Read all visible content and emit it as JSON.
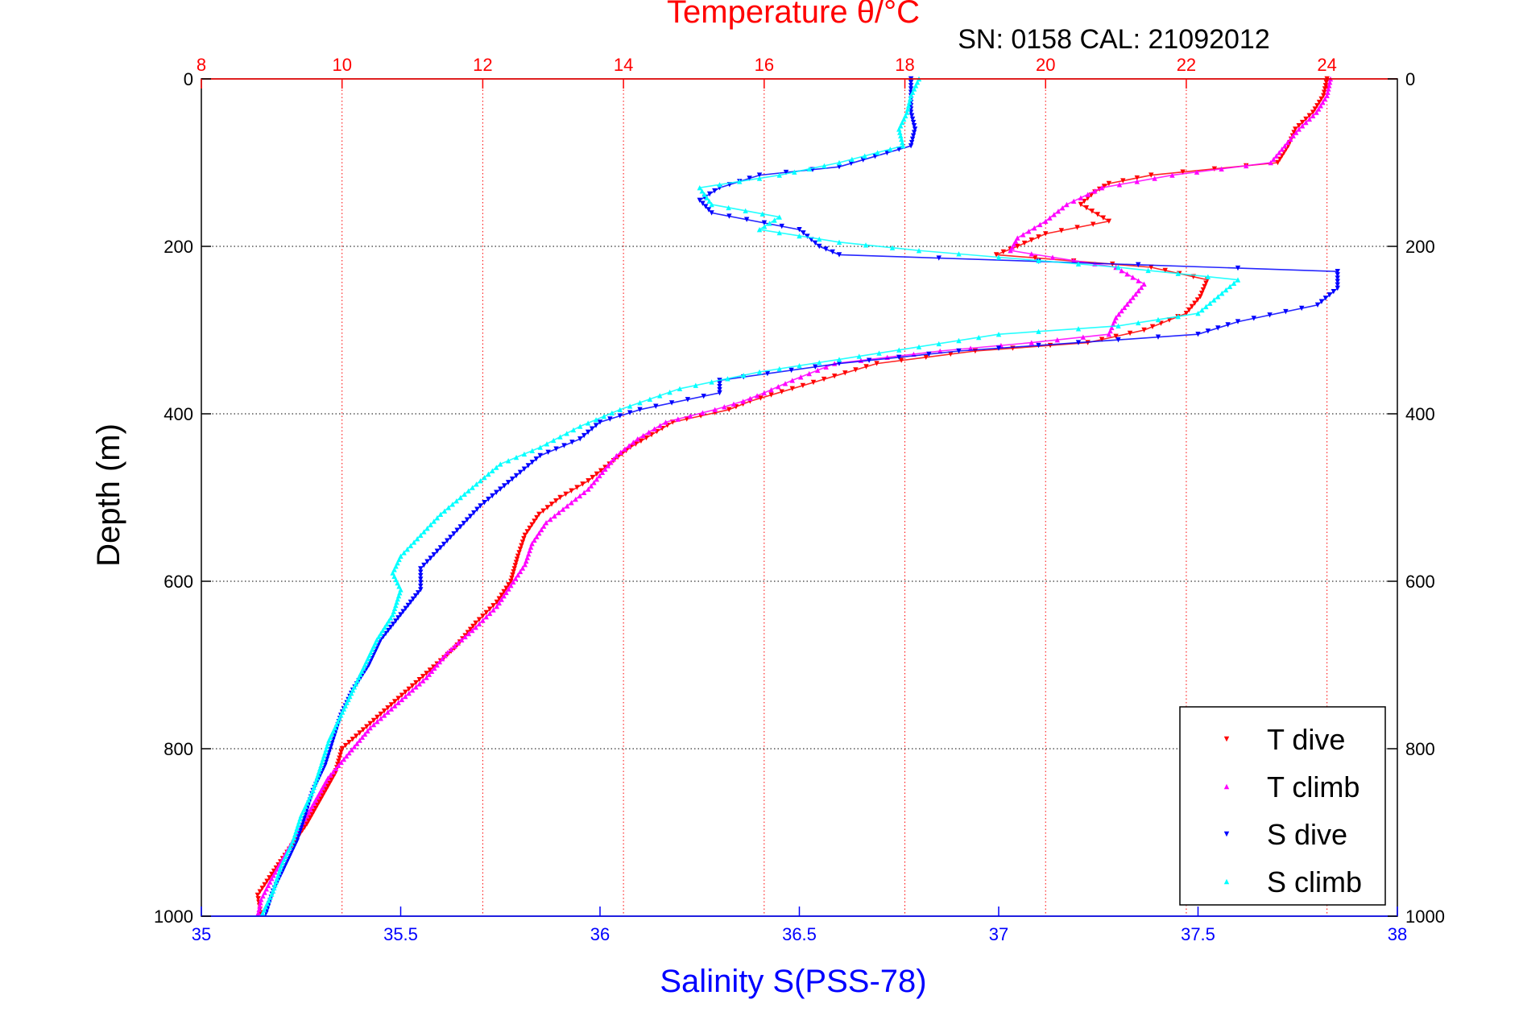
{
  "chart_data": {
    "type": "scatter",
    "title": "Temperature θ/°C",
    "subtitle": "SN: 0158  CAL: 21092012",
    "xlabel": "Salinity S(PSS-78)",
    "ylabel": "Depth (m)",
    "ylim": [
      1000,
      0
    ],
    "y_ticks": [
      0,
      200,
      400,
      600,
      800,
      1000
    ],
    "y_tick_labels": [
      "0",
      "200",
      "400",
      "600",
      "800",
      "1000"
    ],
    "x_bottom": {
      "label": "Salinity S(PSS-78)",
      "lim": [
        35,
        38
      ],
      "ticks": [
        35,
        35.5,
        36,
        36.5,
        37,
        37.5,
        38
      ],
      "tick_labels": [
        "35",
        "35.5",
        "36",
        "36.5",
        "37",
        "37.5",
        "38"
      ],
      "color": "#0000ff"
    },
    "x_top": {
      "label": "Temperature θ/°C",
      "lim": [
        8,
        25
      ],
      "ticks": [
        8,
        10,
        12,
        14,
        16,
        18,
        20,
        22,
        24
      ],
      "tick_labels": [
        "8",
        "10",
        "12",
        "14",
        "16",
        "18",
        "20",
        "22",
        "24"
      ],
      "color": "#ff0000"
    },
    "grid": true,
    "legend_position": "bottom-right",
    "series": [
      {
        "name": "T dive",
        "axis": "top",
        "color": "#ff0000",
        "marker": "triangle-down",
        "points": [
          [
            24.0,
            0
          ],
          [
            23.95,
            20
          ],
          [
            23.8,
            40
          ],
          [
            23.55,
            60
          ],
          [
            23.45,
            80
          ],
          [
            23.3,
            100
          ],
          [
            21.5,
            115
          ],
          [
            20.9,
            125
          ],
          [
            20.7,
            135
          ],
          [
            20.5,
            150
          ],
          [
            20.9,
            170
          ],
          [
            20.0,
            185
          ],
          [
            19.6,
            200
          ],
          [
            19.3,
            210
          ],
          [
            21.5,
            225
          ],
          [
            22.3,
            240
          ],
          [
            22.2,
            260
          ],
          [
            22.0,
            280
          ],
          [
            21.4,
            300
          ],
          [
            20.6,
            315
          ],
          [
            19.0,
            325
          ],
          [
            17.6,
            340
          ],
          [
            17.0,
            355
          ],
          [
            16.4,
            370
          ],
          [
            15.8,
            385
          ],
          [
            15.5,
            395
          ],
          [
            14.7,
            410
          ],
          [
            14.4,
            425
          ],
          [
            14.1,
            440
          ],
          [
            13.8,
            460
          ],
          [
            13.5,
            480
          ],
          [
            13.1,
            500
          ],
          [
            12.8,
            520
          ],
          [
            12.6,
            545
          ],
          [
            12.5,
            570
          ],
          [
            12.4,
            600
          ],
          [
            12.2,
            625
          ],
          [
            11.9,
            650
          ],
          [
            11.6,
            680
          ],
          [
            11.2,
            710
          ],
          [
            10.8,
            740
          ],
          [
            10.4,
            770
          ],
          [
            10.0,
            800
          ],
          [
            9.9,
            830
          ],
          [
            9.7,
            860
          ],
          [
            9.5,
            890
          ],
          [
            9.25,
            920
          ],
          [
            9.0,
            950
          ],
          [
            8.8,
            975
          ],
          [
            8.85,
            1000
          ]
        ]
      },
      {
        "name": "T climb",
        "axis": "top",
        "color": "#ff00ff",
        "marker": "triangle-up",
        "points": [
          [
            24.05,
            0
          ],
          [
            24.0,
            20
          ],
          [
            23.85,
            40
          ],
          [
            23.6,
            60
          ],
          [
            23.4,
            80
          ],
          [
            23.2,
            100
          ],
          [
            21.8,
            115
          ],
          [
            20.8,
            130
          ],
          [
            20.3,
            150
          ],
          [
            20.0,
            170
          ],
          [
            19.6,
            190
          ],
          [
            19.5,
            205
          ],
          [
            21.0,
            225
          ],
          [
            21.4,
            245
          ],
          [
            21.2,
            265
          ],
          [
            21.0,
            285
          ],
          [
            20.9,
            305
          ],
          [
            19.8,
            315
          ],
          [
            18.5,
            325
          ],
          [
            17.0,
            340
          ],
          [
            16.4,
            360
          ],
          [
            16.0,
            375
          ],
          [
            15.7,
            385
          ],
          [
            15.3,
            395
          ],
          [
            14.6,
            410
          ],
          [
            14.2,
            430
          ],
          [
            13.9,
            450
          ],
          [
            13.7,
            470
          ],
          [
            13.5,
            490
          ],
          [
            13.2,
            510
          ],
          [
            12.9,
            530
          ],
          [
            12.7,
            555
          ],
          [
            12.6,
            580
          ],
          [
            12.4,
            605
          ],
          [
            12.2,
            630
          ],
          [
            11.9,
            655
          ],
          [
            11.5,
            685
          ],
          [
            11.2,
            715
          ],
          [
            10.8,
            745
          ],
          [
            10.4,
            775
          ],
          [
            10.1,
            805
          ],
          [
            9.8,
            835
          ],
          [
            9.6,
            865
          ],
          [
            9.4,
            895
          ],
          [
            9.2,
            925
          ],
          [
            9.0,
            955
          ],
          [
            8.85,
            980
          ],
          [
            8.8,
            1000
          ]
        ]
      },
      {
        "name": "S dive",
        "axis": "bottom",
        "color": "#0000ff",
        "marker": "triangle-down",
        "points": [
          [
            36.78,
            0
          ],
          [
            36.78,
            20
          ],
          [
            36.78,
            40
          ],
          [
            36.79,
            60
          ],
          [
            36.78,
            80
          ],
          [
            36.6,
            105
          ],
          [
            36.4,
            115
          ],
          [
            36.3,
            130
          ],
          [
            36.25,
            145
          ],
          [
            36.28,
            160
          ],
          [
            36.5,
            180
          ],
          [
            36.55,
            200
          ],
          [
            36.6,
            210
          ],
          [
            37.85,
            230
          ],
          [
            37.85,
            250
          ],
          [
            37.8,
            270
          ],
          [
            37.6,
            290
          ],
          [
            37.5,
            305
          ],
          [
            37.2,
            315
          ],
          [
            36.9,
            325
          ],
          [
            36.6,
            340
          ],
          [
            36.3,
            360
          ],
          [
            36.3,
            375
          ],
          [
            36.1,
            395
          ],
          [
            36.0,
            410
          ],
          [
            35.95,
            430
          ],
          [
            35.85,
            450
          ],
          [
            35.8,
            470
          ],
          [
            35.75,
            490
          ],
          [
            35.7,
            510
          ],
          [
            35.65,
            535
          ],
          [
            35.6,
            560
          ],
          [
            35.55,
            585
          ],
          [
            35.55,
            610
          ],
          [
            35.5,
            640
          ],
          [
            35.45,
            670
          ],
          [
            35.42,
            700
          ],
          [
            35.38,
            730
          ],
          [
            35.35,
            760
          ],
          [
            35.33,
            790
          ],
          [
            35.31,
            820
          ],
          [
            35.28,
            850
          ],
          [
            35.26,
            880
          ],
          [
            35.24,
            910
          ],
          [
            35.21,
            940
          ],
          [
            35.18,
            970
          ],
          [
            35.16,
            1000
          ]
        ]
      },
      {
        "name": "S climb",
        "axis": "bottom",
        "color": "#00ffff",
        "marker": "triangle-up",
        "points": [
          [
            36.8,
            0
          ],
          [
            36.78,
            20
          ],
          [
            36.77,
            40
          ],
          [
            36.75,
            60
          ],
          [
            36.76,
            80
          ],
          [
            36.6,
            100
          ],
          [
            36.45,
            115
          ],
          [
            36.25,
            130
          ],
          [
            36.28,
            150
          ],
          [
            36.45,
            165
          ],
          [
            36.4,
            180
          ],
          [
            36.6,
            195
          ],
          [
            36.8,
            205
          ],
          [
            37.3,
            225
          ],
          [
            37.6,
            240
          ],
          [
            37.55,
            260
          ],
          [
            37.5,
            280
          ],
          [
            37.3,
            295
          ],
          [
            37.0,
            305
          ],
          [
            36.8,
            320
          ],
          [
            36.6,
            335
          ],
          [
            36.4,
            350
          ],
          [
            36.2,
            370
          ],
          [
            36.05,
            395
          ],
          [
            35.95,
            415
          ],
          [
            35.85,
            440
          ],
          [
            35.75,
            460
          ],
          [
            35.7,
            480
          ],
          [
            35.65,
            500
          ],
          [
            35.6,
            520
          ],
          [
            35.55,
            545
          ],
          [
            35.5,
            570
          ],
          [
            35.48,
            590
          ],
          [
            35.5,
            610
          ],
          [
            35.48,
            640
          ],
          [
            35.44,
            670
          ],
          [
            35.41,
            700
          ],
          [
            35.38,
            730
          ],
          [
            35.35,
            760
          ],
          [
            35.32,
            790
          ],
          [
            35.3,
            820
          ],
          [
            35.28,
            850
          ],
          [
            35.25,
            880
          ],
          [
            35.23,
            910
          ],
          [
            35.2,
            940
          ],
          [
            35.18,
            970
          ],
          [
            35.15,
            1000
          ]
        ]
      }
    ]
  }
}
